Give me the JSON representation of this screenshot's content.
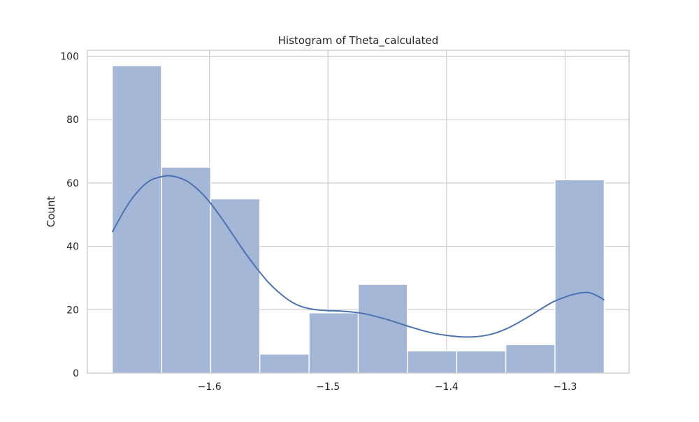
{
  "chart_data": {
    "type": "bar",
    "title": "Histogram of Theta_calculated",
    "xlabel": "",
    "ylabel": "Count",
    "bin_edges": [
      -1.682,
      -1.6405,
      -1.599,
      -1.5575,
      -1.516,
      -1.4745,
      -1.433,
      -1.3915,
      -1.35,
      -1.3085,
      -1.267
    ],
    "values": [
      97,
      65,
      55,
      6,
      19,
      28,
      7,
      7,
      9,
      61
    ],
    "xlim": [
      -1.703,
      -1.246
    ],
    "ylim": [
      0,
      101.85
    ],
    "xticks": [
      -1.6,
      -1.5,
      -1.4,
      -1.3
    ],
    "xtick_labels": [
      "−1.6",
      "−1.5",
      "−1.4",
      "−1.3"
    ],
    "yticks": [
      0,
      20,
      40,
      60,
      80,
      100
    ],
    "ytick_labels": [
      "0",
      "20",
      "40",
      "60",
      "80",
      "100"
    ],
    "kde": {
      "x": [
        -1.682,
        -1.67,
        -1.66,
        -1.65,
        -1.64,
        -1.632,
        -1.62,
        -1.61,
        -1.6,
        -1.59,
        -1.58,
        -1.57,
        -1.56,
        -1.55,
        -1.54,
        -1.53,
        -1.52,
        -1.51,
        -1.5,
        -1.49,
        -1.48,
        -1.47,
        -1.46,
        -1.45,
        -1.44,
        -1.43,
        -1.42,
        -1.41,
        -1.4,
        -1.39,
        -1.38,
        -1.37,
        -1.36,
        -1.35,
        -1.34,
        -1.33,
        -1.32,
        -1.31,
        -1.3,
        -1.29,
        -1.28,
        -1.27,
        -1.267
      ],
      "y": [
        44.5,
        52.5,
        57.5,
        60.8,
        62.0,
        62.2,
        60.8,
        58.0,
        54.0,
        49.0,
        43.5,
        38.0,
        33.0,
        28.5,
        25.0,
        22.3,
        20.7,
        20.0,
        19.7,
        19.6,
        19.3,
        18.8,
        17.9,
        16.9,
        15.7,
        14.5,
        13.4,
        12.5,
        11.9,
        11.5,
        11.4,
        11.7,
        12.5,
        13.9,
        15.8,
        18.0,
        20.3,
        22.5,
        24.0,
        25.1,
        25.4,
        23.8,
        23.0
      ]
    },
    "grid": true,
    "legend": "none",
    "colors": {
      "bar_fill": "#a5b7d7",
      "bar_edge": "#ffffff",
      "kde_line": "#4c72b0",
      "grid": "#cccccc",
      "spine": "#cccccc",
      "text": "#262626"
    }
  }
}
